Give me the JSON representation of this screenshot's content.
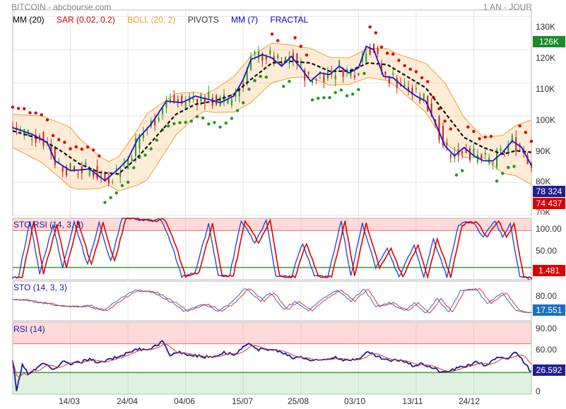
{
  "header": {
    "title": "BITCOIN - abcbourse.com",
    "period": "1 AN - JOUR"
  },
  "legend": [
    {
      "label": "MM (20)",
      "color": "#000000"
    },
    {
      "label": "SAR (0.02, 0.2)",
      "color": "#cc0000"
    },
    {
      "label": "BOLL (20, 2)",
      "color": "#f0a030"
    },
    {
      "label": "PIVOTS",
      "color": "#333333"
    },
    {
      "label": "MM (7)",
      "color": "#0000cc"
    },
    {
      "label": "FRACTAL",
      "color": "#0000cc"
    }
  ],
  "badges": {
    "price_high": "126K",
    "price_close": "78 324",
    "price_low": "74 437",
    "sto_rsi": "1.481",
    "sto": "17.551",
    "rsi": "26.592"
  },
  "colors": {
    "green": "#228b22",
    "red": "#dd0000",
    "blue": "#1a6fc4",
    "navy": "#1f1f8f"
  },
  "chart_data": [
    {
      "type": "line",
      "title": "BITCOIN",
      "y_ticks": [
        "130K",
        "120K",
        "110K",
        "100K",
        "90K",
        "80K",
        "70K"
      ],
      "y_tick_values": [
        130000,
        120000,
        110000,
        100000,
        90000,
        80000,
        70000
      ],
      "ylim": [
        70000,
        132000
      ],
      "x_ticks": [
        "14/03",
        "24/04",
        "04/06",
        "15/07",
        "25/08",
        "03/10",
        "13/11",
        "24/12"
      ],
      "x_tick_index": [
        30,
        60,
        90,
        120,
        150,
        180,
        210,
        240
      ],
      "n_points": 271,
      "series": [
        {
          "name": "MM (7)",
          "anchors": [
            [
              0,
              96500
            ],
            [
              10,
              94500
            ],
            [
              18,
              92000
            ],
            [
              22,
              86500
            ],
            [
              30,
              83500
            ],
            [
              40,
              84000
            ],
            [
              48,
              80500
            ],
            [
              55,
              84000
            ],
            [
              60,
              87000
            ],
            [
              65,
              93000
            ],
            [
              72,
              97500
            ],
            [
              80,
              104500
            ],
            [
              88,
              104000
            ],
            [
              95,
              106000
            ],
            [
              102,
              105000
            ],
            [
              108,
              104000
            ],
            [
              115,
              106000
            ],
            [
              120,
              111000
            ],
            [
              124,
              117000
            ],
            [
              130,
              118500
            ],
            [
              135,
              117500
            ],
            [
              140,
              115000
            ],
            [
              145,
              118000
            ],
            [
              150,
              114500
            ],
            [
              155,
              110500
            ],
            [
              160,
              113000
            ],
            [
              165,
              112500
            ],
            [
              170,
              115000
            ],
            [
              175,
              113000
            ],
            [
              180,
              114500
            ],
            [
              184,
              121000
            ],
            [
              188,
              120000
            ],
            [
              193,
              112000
            ],
            [
              198,
              111500
            ],
            [
              204,
              108500
            ],
            [
              210,
              106000
            ],
            [
              215,
              104500
            ],
            [
              220,
              98000
            ],
            [
              225,
              91000
            ],
            [
              230,
              88000
            ],
            [
              235,
              90500
            ],
            [
              240,
              88000
            ],
            [
              245,
              86500
            ],
            [
              250,
              86500
            ],
            [
              255,
              89000
            ],
            [
              260,
              92500
            ],
            [
              265,
              90500
            ],
            [
              271,
              84000
            ]
          ]
        },
        {
          "name": "MM (20)",
          "anchors": [
            [
              0,
              95500
            ],
            [
              15,
              93000
            ],
            [
              25,
              89500
            ],
            [
              35,
              85500
            ],
            [
              45,
              83000
            ],
            [
              55,
              82500
            ],
            [
              65,
              87500
            ],
            [
              75,
              94000
            ],
            [
              85,
              100500
            ],
            [
              95,
              103500
            ],
            [
              105,
              104500
            ],
            [
              115,
              106500
            ],
            [
              125,
              111500
            ],
            [
              135,
              116000
            ],
            [
              145,
              116500
            ],
            [
              155,
              116000
            ],
            [
              165,
              113500
            ],
            [
              175,
              113500
            ],
            [
              185,
              116000
            ],
            [
              195,
              115500
            ],
            [
              205,
              112000
            ],
            [
              215,
              108500
            ],
            [
              225,
              101000
            ],
            [
              235,
              93500
            ],
            [
              245,
              90500
            ],
            [
              255,
              88500
            ],
            [
              262,
              89500
            ],
            [
              271,
              89000
            ]
          ]
        },
        {
          "name": "BOLL upper",
          "offsets": [
            [
              0,
              5000
            ],
            [
              30,
              9000
            ],
            [
              50,
              3500
            ],
            [
              70,
              10000
            ],
            [
              100,
              2500
            ],
            [
              124,
              7000
            ],
            [
              150,
              4500
            ],
            [
              175,
              4000
            ],
            [
              200,
              5000
            ],
            [
              225,
              9000
            ],
            [
              245,
              3000
            ],
            [
              271,
              10000
            ]
          ]
        },
        {
          "name": "BOLL lower",
          "offsets": [
            [
              0,
              5000
            ],
            [
              30,
              9000
            ],
            [
              50,
              3500
            ],
            [
              70,
              10000
            ],
            [
              100,
              2500
            ],
            [
              124,
              7000
            ],
            [
              150,
              4500
            ],
            [
              175,
              4000
            ],
            [
              200,
              5000
            ],
            [
              225,
              9000
            ],
            [
              245,
              3000
            ],
            [
              271,
              10000
            ]
          ]
        }
      ],
      "last_close": 78324
    },
    {
      "type": "line",
      "title": "STO RSI (14, 3, 3)",
      "y_ticks": [
        "100.00",
        "50.00"
      ],
      "ylim": [
        0,
        100
      ],
      "bands": {
        "overbought": 80,
        "oversold": 20
      },
      "peaks": [
        [
          4,
          5
        ],
        [
          10,
          95
        ],
        [
          15,
          10
        ],
        [
          22,
          90
        ],
        [
          27,
          20
        ],
        [
          33,
          93
        ],
        [
          40,
          25
        ],
        [
          46,
          92
        ],
        [
          52,
          30
        ],
        [
          58,
          100
        ],
        [
          66,
          98
        ],
        [
          74,
          95
        ],
        [
          78,
          99
        ],
        [
          84,
          55
        ],
        [
          89,
          5
        ],
        [
          96,
          12
        ],
        [
          103,
          92
        ],
        [
          108,
          5
        ],
        [
          114,
          8
        ],
        [
          120,
          97
        ],
        [
          127,
          60
        ],
        [
          133,
          97
        ],
        [
          138,
          5
        ],
        [
          146,
          5
        ],
        [
          152,
          60
        ],
        [
          158,
          5
        ],
        [
          165,
          5
        ],
        [
          172,
          95
        ],
        [
          177,
          5
        ],
        [
          183,
          92
        ],
        [
          190,
          20
        ],
        [
          196,
          50
        ],
        [
          202,
          5
        ],
        [
          210,
          55
        ],
        [
          215,
          5
        ],
        [
          220,
          65
        ],
        [
          227,
          5
        ],
        [
          233,
          90
        ],
        [
          240,
          95
        ],
        [
          246,
          70
        ],
        [
          252,
          95
        ],
        [
          256,
          70
        ],
        [
          260,
          90
        ],
        [
          265,
          5
        ],
        [
          271,
          1.481
        ]
      ],
      "last_value": 1.481
    },
    {
      "type": "line",
      "title": "STO (14, 3, 3)",
      "y_ticks": [
        "80.00"
      ],
      "ylim": [
        0,
        100
      ],
      "peaks": [
        [
          0,
          55
        ],
        [
          10,
          50
        ],
        [
          20,
          42
        ],
        [
          30,
          35
        ],
        [
          40,
          38
        ],
        [
          48,
          25
        ],
        [
          58,
          60
        ],
        [
          65,
          78
        ],
        [
          75,
          70
        ],
        [
          84,
          45
        ],
        [
          90,
          25
        ],
        [
          100,
          42
        ],
        [
          108,
          25
        ],
        [
          115,
          45
        ],
        [
          122,
          82
        ],
        [
          130,
          50
        ],
        [
          135,
          72
        ],
        [
          142,
          28
        ],
        [
          148,
          50
        ],
        [
          155,
          25
        ],
        [
          162,
          55
        ],
        [
          170,
          78
        ],
        [
          177,
          50
        ],
        [
          184,
          80
        ],
        [
          190,
          35
        ],
        [
          197,
          45
        ],
        [
          205,
          25
        ],
        [
          210,
          45
        ],
        [
          216,
          20
        ],
        [
          222,
          55
        ],
        [
          228,
          22
        ],
        [
          234,
          75
        ],
        [
          242,
          80
        ],
        [
          248,
          45
        ],
        [
          256,
          70
        ],
        [
          262,
          30
        ],
        [
          266,
          22
        ],
        [
          271,
          17.551
        ]
      ],
      "last_value": 17.551
    },
    {
      "type": "line",
      "title": "RSI (14)",
      "y_ticks": [
        "90.00",
        "60.00",
        "0"
      ],
      "ylim": [
        0,
        100
      ],
      "bands": {
        "overbought": 70,
        "oversold": 30
      },
      "anchors": [
        [
          0,
          47
        ],
        [
          2,
          5
        ],
        [
          5,
          40
        ],
        [
          8,
          28
        ],
        [
          12,
          35
        ],
        [
          16,
          42
        ],
        [
          22,
          35
        ],
        [
          26,
          45
        ],
        [
          30,
          42
        ],
        [
          36,
          45
        ],
        [
          40,
          48
        ],
        [
          46,
          44
        ],
        [
          50,
          48
        ],
        [
          55,
          52
        ],
        [
          60,
          58
        ],
        [
          66,
          62
        ],
        [
          72,
          63
        ],
        [
          78,
          73
        ],
        [
          82,
          55
        ],
        [
          86,
          58
        ],
        [
          92,
          55
        ],
        [
          98,
          52
        ],
        [
          104,
          52
        ],
        [
          110,
          58
        ],
        [
          116,
          55
        ],
        [
          120,
          65
        ],
        [
          124,
          70
        ],
        [
          128,
          62
        ],
        [
          134,
          62
        ],
        [
          140,
          58
        ],
        [
          146,
          50
        ],
        [
          150,
          52
        ],
        [
          156,
          46
        ],
        [
          162,
          48
        ],
        [
          168,
          52
        ],
        [
          174,
          46
        ],
        [
          180,
          50
        ],
        [
          185,
          58
        ],
        [
          190,
          52
        ],
        [
          196,
          46
        ],
        [
          202,
          48
        ],
        [
          208,
          40
        ],
        [
          214,
          42
        ],
        [
          220,
          35
        ],
        [
          224,
          30
        ],
        [
          230,
          35
        ],
        [
          236,
          40
        ],
        [
          242,
          45
        ],
        [
          246,
          40
        ],
        [
          252,
          50
        ],
        [
          258,
          50
        ],
        [
          262,
          60
        ],
        [
          266,
          45
        ],
        [
          271,
          26.592
        ]
      ],
      "last_value": 26.592
    }
  ]
}
